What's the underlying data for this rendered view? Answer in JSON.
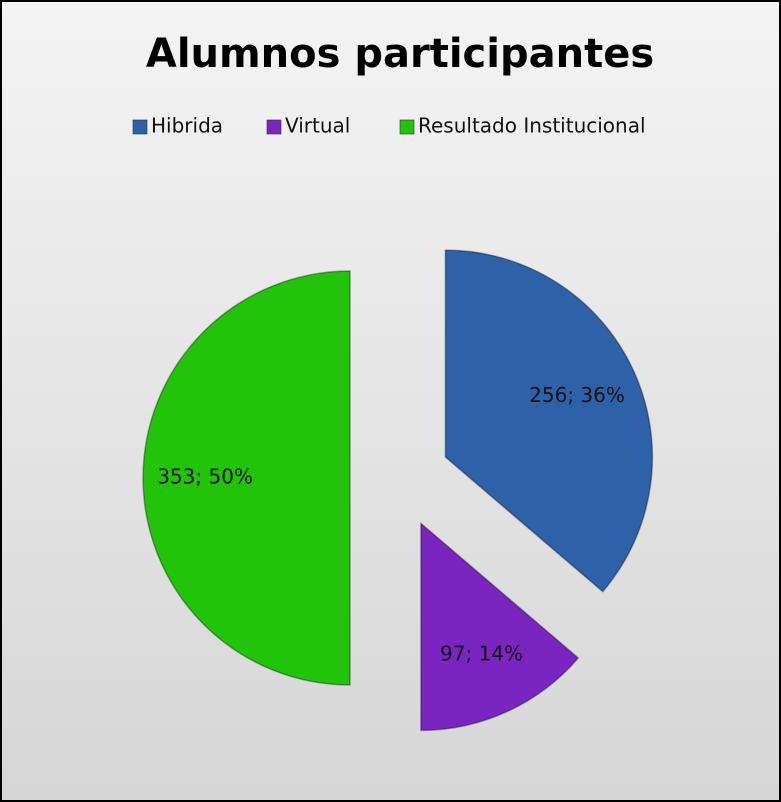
{
  "chart_data": {
    "type": "pie",
    "title": "Alumnos participantes",
    "categories": [
      "Hibrida",
      "Virtual",
      "Resultado Institucional"
    ],
    "values": [
      256,
      97,
      353
    ],
    "value_labels": [
      "256; 36%",
      "97; 14%",
      "353; 50%"
    ],
    "colors": [
      "#2e62a8",
      "#7a25c0",
      "#22c40a"
    ],
    "legend": "top"
  }
}
